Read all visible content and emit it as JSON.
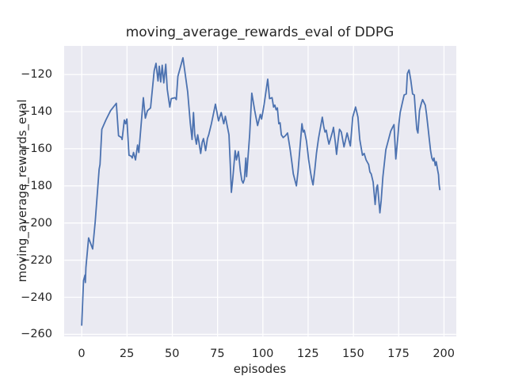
{
  "chart_data": {
    "type": "line",
    "title": "moving_average_rewards_eval of DDPG",
    "xlabel": "episodes",
    "ylabel": "moving_average_rewards_eval",
    "xlim": [
      -9.6,
      206.7
    ],
    "ylim": [
      -261.1,
      -104.6
    ],
    "grid": true,
    "legend_position": "none",
    "colors": {
      "line": "#4c72b0",
      "axes_background": "#eaeaf2",
      "grid": "#ffffff",
      "figure_background": "#ffffff",
      "text": "#262626"
    },
    "xticks": [
      {
        "value": 0,
        "label": "0"
      },
      {
        "value": 25,
        "label": "25"
      },
      {
        "value": 50,
        "label": "50"
      },
      {
        "value": 75,
        "label": "75"
      },
      {
        "value": 100,
        "label": "100"
      },
      {
        "value": 125,
        "label": "125"
      },
      {
        "value": 150,
        "label": "150"
      },
      {
        "value": 175,
        "label": "175"
      },
      {
        "value": 200,
        "label": "200"
      }
    ],
    "yticks": [
      {
        "value": -120,
        "label": "−120"
      },
      {
        "value": -140,
        "label": "−140"
      },
      {
        "value": -160,
        "label": "−160"
      },
      {
        "value": -180,
        "label": "−180"
      },
      {
        "value": -200,
        "label": "−200"
      },
      {
        "value": -220,
        "label": "−220"
      },
      {
        "value": -240,
        "label": "−240"
      },
      {
        "value": -260,
        "label": "−260"
      }
    ],
    "series": [
      {
        "name": "moving_average_rewards_eval",
        "points": [
          [
            0,
            -255
          ],
          [
            1,
            -231
          ],
          [
            1.8,
            -228
          ],
          [
            2,
            -232
          ],
          [
            2.3,
            -224
          ],
          [
            3.8,
            -208
          ],
          [
            6,
            -214
          ],
          [
            7.4,
            -199.5
          ],
          [
            9.6,
            -171
          ],
          [
            10.1,
            -168.5
          ],
          [
            11.1,
            -149.5
          ],
          [
            13.3,
            -144.5
          ],
          [
            15.9,
            -139.5
          ],
          [
            19.1,
            -135.5
          ],
          [
            20.3,
            -153
          ],
          [
            22,
            -154
          ],
          [
            22.3,
            -155
          ],
          [
            23.5,
            -144.5
          ],
          [
            24.2,
            -146.5
          ],
          [
            24.9,
            -144
          ],
          [
            26.1,
            -163.5
          ],
          [
            27.3,
            -164
          ],
          [
            27.9,
            -165
          ],
          [
            28.6,
            -162
          ],
          [
            29.7,
            -166
          ],
          [
            30.8,
            -158
          ],
          [
            31.5,
            -162
          ],
          [
            34,
            -132.5
          ],
          [
            35.1,
            -143.5
          ],
          [
            36.3,
            -139.5
          ],
          [
            38,
            -138
          ],
          [
            40,
            -118
          ],
          [
            41,
            -114
          ],
          [
            42.1,
            -123.5
          ],
          [
            42.8,
            -115.5
          ],
          [
            43.6,
            -124
          ],
          [
            44.4,
            -115
          ],
          [
            45.3,
            -124.5
          ],
          [
            46.4,
            -114.5
          ],
          [
            47.2,
            -128
          ],
          [
            48.6,
            -137.5
          ],
          [
            49.4,
            -133
          ],
          [
            51.5,
            -132.5
          ],
          [
            52.2,
            -133.5
          ],
          [
            53.1,
            -121
          ],
          [
            55.9,
            -111
          ],
          [
            57,
            -119
          ],
          [
            58.5,
            -129.5
          ],
          [
            59.9,
            -146
          ],
          [
            60.9,
            -155
          ],
          [
            61.7,
            -140.5
          ],
          [
            62.4,
            -152.5
          ],
          [
            63.3,
            -157.5
          ],
          [
            64,
            -152.5
          ],
          [
            64.7,
            -156.5
          ],
          [
            65.7,
            -162.5
          ],
          [
            66.5,
            -156.5
          ],
          [
            67.2,
            -154.5
          ],
          [
            68.4,
            -161
          ],
          [
            69.4,
            -154.5
          ],
          [
            70.1,
            -152.5
          ],
          [
            71.6,
            -146.5
          ],
          [
            73.8,
            -136
          ],
          [
            75.5,
            -145
          ],
          [
            77,
            -140.5
          ],
          [
            78.4,
            -146.5
          ],
          [
            79.3,
            -142.5
          ],
          [
            81.3,
            -152.5
          ],
          [
            82,
            -168
          ],
          [
            82.6,
            -183.5
          ],
          [
            83.3,
            -177
          ],
          [
            84.7,
            -161
          ],
          [
            85.4,
            -166
          ],
          [
            86.5,
            -161.5
          ],
          [
            87.6,
            -172
          ],
          [
            88.4,
            -177
          ],
          [
            89.1,
            -178.5
          ],
          [
            89.8,
            -176.5
          ],
          [
            90.6,
            -165
          ],
          [
            91,
            -175
          ],
          [
            92.7,
            -152.5
          ],
          [
            93.9,
            -130
          ],
          [
            95.5,
            -139.5
          ],
          [
            97.1,
            -147.5
          ],
          [
            98.6,
            -141.5
          ],
          [
            99.3,
            -144
          ],
          [
            100.7,
            -136
          ],
          [
            102.7,
            -122.5
          ],
          [
            103.7,
            -133
          ],
          [
            105.1,
            -132.5
          ],
          [
            105.9,
            -137.5
          ],
          [
            106.6,
            -136.5
          ],
          [
            107.3,
            -139
          ],
          [
            108,
            -138
          ],
          [
            108.8,
            -146.5
          ],
          [
            109.5,
            -146
          ],
          [
            110.2,
            -152.5
          ],
          [
            111.2,
            -154
          ],
          [
            112.4,
            -153
          ],
          [
            113.6,
            -151.5
          ],
          [
            115,
            -160
          ],
          [
            116.1,
            -168
          ],
          [
            116.8,
            -173.5
          ],
          [
            118,
            -178
          ],
          [
            118.5,
            -180
          ],
          [
            119.4,
            -172.5
          ],
          [
            121.6,
            -146.5
          ],
          [
            122.3,
            -151
          ],
          [
            122.9,
            -150
          ],
          [
            124.1,
            -156
          ],
          [
            125.3,
            -166
          ],
          [
            126.3,
            -172.5
          ],
          [
            127,
            -176.5
          ],
          [
            127.7,
            -179.5
          ],
          [
            128.7,
            -171
          ],
          [
            129.6,
            -162.5
          ],
          [
            130.7,
            -154.5
          ],
          [
            132.8,
            -143
          ],
          [
            133.6,
            -148
          ],
          [
            134.3,
            -151
          ],
          [
            135,
            -150
          ],
          [
            135.7,
            -154
          ],
          [
            136.5,
            -157.5
          ],
          [
            138.4,
            -151
          ],
          [
            139,
            -148.5
          ],
          [
            140,
            -156.5
          ],
          [
            140.7,
            -163
          ],
          [
            141.5,
            -156
          ],
          [
            142.3,
            -149.5
          ],
          [
            143.3,
            -151
          ],
          [
            144.8,
            -159
          ],
          [
            146.5,
            -151.5
          ],
          [
            148.3,
            -158.5
          ],
          [
            149.6,
            -143
          ],
          [
            151.2,
            -137.5
          ],
          [
            152.5,
            -143
          ],
          [
            153.5,
            -155
          ],
          [
            155,
            -163.5
          ],
          [
            155.9,
            -162.5
          ],
          [
            157,
            -166
          ],
          [
            158.4,
            -168.5
          ],
          [
            159.1,
            -172.5
          ],
          [
            159.8,
            -173.5
          ],
          [
            160.9,
            -178
          ],
          [
            162,
            -190
          ],
          [
            162.8,
            -181
          ],
          [
            163.3,
            -179.5
          ],
          [
            164.6,
            -194.5
          ],
          [
            165.3,
            -188
          ],
          [
            166.3,
            -175
          ],
          [
            167.9,
            -160.5
          ],
          [
            169,
            -156.5
          ],
          [
            170.6,
            -150.5
          ],
          [
            171.6,
            -148.5
          ],
          [
            172.4,
            -147
          ],
          [
            173.4,
            -165.5
          ],
          [
            174.4,
            -155
          ],
          [
            175.1,
            -146.5
          ],
          [
            175.8,
            -140.5
          ],
          [
            177.3,
            -134
          ],
          [
            178,
            -131
          ],
          [
            179.2,
            -130.5
          ],
          [
            179.8,
            -119.5
          ],
          [
            180.7,
            -117.5
          ],
          [
            181.7,
            -123
          ],
          [
            182.7,
            -130.5
          ],
          [
            183.6,
            -131
          ],
          [
            184.2,
            -139.5
          ],
          [
            185,
            -149.5
          ],
          [
            185.6,
            -151.5
          ],
          [
            186.5,
            -139.5
          ],
          [
            187.5,
            -135.5
          ],
          [
            188.2,
            -133.5
          ],
          [
            189.7,
            -136.5
          ],
          [
            190.4,
            -141.5
          ],
          [
            191.1,
            -147.5
          ],
          [
            191.9,
            -155
          ],
          [
            192.6,
            -161
          ],
          [
            193.3,
            -165
          ],
          [
            194,
            -166.5
          ],
          [
            194.5,
            -165
          ],
          [
            195.2,
            -169
          ],
          [
            195.7,
            -167
          ],
          [
            196.5,
            -171.5
          ],
          [
            197,
            -174
          ],
          [
            197.3,
            -179
          ],
          [
            197.7,
            -182
          ]
        ]
      }
    ]
  }
}
